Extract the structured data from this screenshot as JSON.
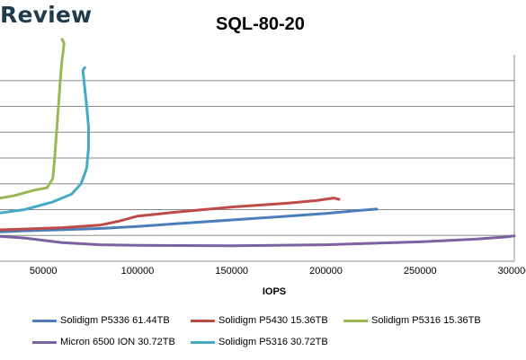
{
  "header": {
    "brand": "Review"
  },
  "chart_data": {
    "type": "line",
    "title": "SQL-80-20",
    "xlabel": "IOPS",
    "ylabel": "",
    "xlim": [
      27000,
      300000
    ],
    "ylim": [
      0,
      8
    ],
    "x_ticks": [
      "50000",
      "100000",
      "150000",
      "200000",
      "250000",
      "300000"
    ],
    "x_tick_values": [
      50000,
      100000,
      150000,
      200000,
      250000,
      300000
    ],
    "y_gridlines": [
      0,
      1,
      2,
      3,
      4,
      5,
      6,
      7
    ],
    "grid": true,
    "legend_position": "bottom",
    "series": [
      {
        "name": "Solidigm P5336 61.44TB",
        "color": "#4a7ebb",
        "x": [
          20000,
          40000,
          60000,
          80000,
          100000,
          120000,
          150000,
          180000,
          200000,
          215000,
          227000
        ],
        "y": [
          1.12,
          1.18,
          1.22,
          1.27,
          1.35,
          1.45,
          1.6,
          1.75,
          1.85,
          1.95,
          2.02
        ]
      },
      {
        "name": "Solidigm P5430 15.36TB",
        "color": "#be4b48",
        "x": [
          20000,
          40000,
          60000,
          80000,
          90000,
          100000,
          120000,
          150000,
          180000,
          195000,
          204000,
          207000
        ],
        "y": [
          1.2,
          1.25,
          1.3,
          1.4,
          1.55,
          1.75,
          1.9,
          2.1,
          2.25,
          2.35,
          2.45,
          2.4
        ]
      },
      {
        "name": "Solidigm P5316 15.36TB",
        "color": "#98b954",
        "x": [
          20000,
          35000,
          45000,
          52000,
          55000,
          56000,
          57000,
          58000,
          59000,
          60000,
          60500,
          61000,
          60000
        ],
        "y": [
          2.35,
          2.55,
          2.75,
          2.85,
          3.2,
          4.0,
          5.0,
          6.0,
          7.0,
          7.85,
          8.1,
          8.45,
          8.6
        ]
      },
      {
        "name": "Micron 6500 ION 30.72TB",
        "color": "#7d60a0",
        "x": [
          20000,
          40000,
          60000,
          80000,
          100000,
          150000,
          200000,
          250000,
          280000,
          295000,
          300000
        ],
        "y": [
          1.0,
          0.9,
          0.72,
          0.64,
          0.62,
          0.6,
          0.64,
          0.75,
          0.86,
          0.94,
          0.98
        ]
      },
      {
        "name": "Solidigm P5316 30.72TB",
        "color": "#46aac5",
        "x": [
          20000,
          40000,
          55000,
          65000,
          70000,
          73000,
          74000,
          74000,
          73000,
          72000,
          71000,
          72000
        ],
        "y": [
          1.8,
          2.0,
          2.3,
          2.6,
          3.0,
          3.6,
          4.4,
          5.2,
          6.0,
          6.7,
          7.4,
          7.5
        ]
      }
    ]
  }
}
